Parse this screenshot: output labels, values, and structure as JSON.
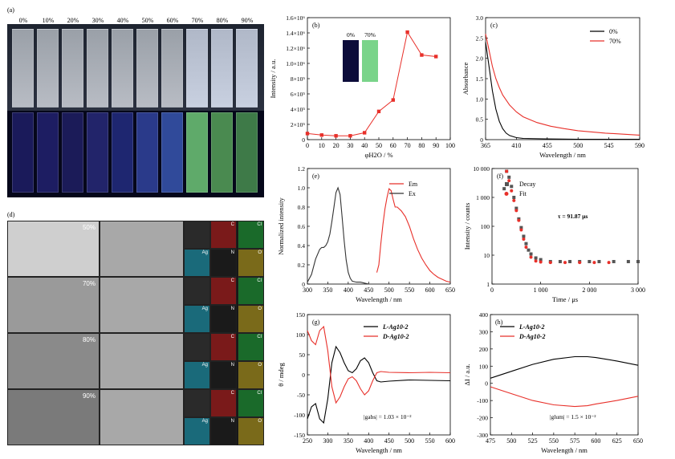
{
  "panel_a": {
    "tag": "(a)",
    "labels": [
      "0%",
      "10%",
      "20%",
      "30%",
      "40%",
      "50%",
      "60%",
      "70%",
      "80%",
      "90%"
    ]
  },
  "panel_d": {
    "tag": "(d)",
    "rows": [
      "50%",
      "70%",
      "80%",
      "90%"
    ],
    "map_labels": [
      "C",
      "Cl",
      "Ag",
      "N",
      "O"
    ]
  },
  "chart_data": [
    {
      "id": "b",
      "tag": "(b)",
      "type": "line",
      "xlabel": "φH2O / %",
      "ylabel": "Intensity / a.u.",
      "xlim": [
        0,
        100
      ],
      "ylim": [
        0,
        1600000
      ],
      "xticks": [
        "0",
        "10",
        "20",
        "30",
        "40",
        "50",
        "60",
        "70",
        "80",
        "90",
        "100"
      ],
      "yticks": [
        "0",
        "2×10⁵",
        "4×10⁵",
        "6×10⁵",
        "8×10⁵",
        "1.0×10⁶",
        "1.2×10⁶",
        "1.4×10⁶",
        "1.6×10⁶"
      ],
      "inset_labels": [
        "0%",
        "70%"
      ],
      "x": [
        0,
        10,
        20,
        30,
        40,
        50,
        60,
        70,
        80,
        90
      ],
      "y": [
        80000,
        60000,
        50000,
        50000,
        90000,
        370000,
        520000,
        1410000,
        1110000,
        1090000
      ],
      "color": "#e8302a"
    },
    {
      "id": "c",
      "tag": "(c)",
      "type": "line",
      "xlabel": "Wavelength / nm",
      "ylabel": "Absorbance",
      "xlim": [
        365,
        590
      ],
      "ylim": [
        0,
        3.0
      ],
      "xticks": [
        "365",
        "410",
        "455",
        "500",
        "545",
        "590"
      ],
      "yticks": [
        "0",
        "0.5",
        "1.0",
        "1.5",
        "2.0",
        "2.5",
        "3.0"
      ],
      "series": [
        {
          "name": "0%",
          "color": "#000000",
          "x": [
            365,
            370,
            375,
            380,
            385,
            390,
            395,
            400,
            410,
            420,
            450,
            500,
            590
          ],
          "y": [
            2.4,
            1.8,
            1.2,
            0.75,
            0.45,
            0.27,
            0.16,
            0.1,
            0.05,
            0.03,
            0.02,
            0.01,
            0.01
          ]
        },
        {
          "name": "70%",
          "color": "#e8302a",
          "x": [
            365,
            370,
            375,
            380,
            385,
            390,
            400,
            410,
            420,
            440,
            460,
            480,
            500,
            540,
            590
          ],
          "y": [
            2.6,
            2.2,
            1.8,
            1.5,
            1.28,
            1.1,
            0.85,
            0.68,
            0.56,
            0.42,
            0.33,
            0.27,
            0.22,
            0.16,
            0.11
          ]
        }
      ]
    },
    {
      "id": "e",
      "tag": "(e)",
      "type": "line",
      "xlabel": "Wavelength / nm",
      "ylabel": "Normalized intensity",
      "xlim": [
        300,
        650
      ],
      "ylim": [
        0,
        1.2
      ],
      "xticks": [
        "300",
        "350",
        "400",
        "450",
        "500",
        "550",
        "600",
        "650"
      ],
      "yticks": [
        "0",
        "0.2",
        "0.4",
        "0.6",
        "0.8",
        "1.0",
        "1.2"
      ],
      "series": [
        {
          "name": "Em",
          "color": "#e8302a",
          "x": [
            470,
            475,
            480,
            485,
            490,
            495,
            500,
            505,
            510,
            515,
            520,
            530,
            540,
            550,
            560,
            570,
            580,
            590,
            600,
            610,
            620,
            630,
            640,
            650
          ],
          "y": [
            0.12,
            0.2,
            0.42,
            0.62,
            0.78,
            0.9,
            0.99,
            0.97,
            0.88,
            0.8,
            0.8,
            0.76,
            0.7,
            0.6,
            0.47,
            0.36,
            0.27,
            0.2,
            0.14,
            0.1,
            0.07,
            0.05,
            0.03,
            0.02
          ]
        },
        {
          "name": "Ex",
          "color": "#333333",
          "x": [
            300,
            310,
            320,
            330,
            335,
            340,
            345,
            350,
            355,
            360,
            365,
            370,
            375,
            380,
            385,
            390,
            395,
            400,
            405,
            410,
            420,
            430,
            440,
            450
          ],
          "y": [
            0.02,
            0.1,
            0.26,
            0.36,
            0.38,
            0.38,
            0.4,
            0.44,
            0.52,
            0.65,
            0.8,
            0.95,
            1.0,
            0.93,
            0.7,
            0.45,
            0.25,
            0.12,
            0.06,
            0.03,
            0.02,
            0.02,
            0.01,
            0.0
          ]
        }
      ]
    },
    {
      "id": "f",
      "tag": "(f)",
      "type": "scatter",
      "xlabel": "Time / μs",
      "ylabel": "Intensity / counts",
      "xlim": [
        0,
        3000
      ],
      "ylim": [
        1,
        10000
      ],
      "yscale": "log",
      "xticks": [
        "0",
        "1 000",
        "2 000",
        "3 000"
      ],
      "yticks": [
        "1",
        "10",
        "100",
        "1 000",
        "10 000"
      ],
      "annotation": "τ = 91.87 μs",
      "series": [
        {
          "name": "Decay",
          "color": "#555555",
          "x": [
            250,
            300,
            350,
            400,
            450,
            500,
            550,
            600,
            650,
            700,
            750,
            800,
            900,
            1000,
            1200,
            1400,
            1600,
            1800,
            2000,
            2200,
            2500,
            2800,
            3000
          ],
          "y": [
            2000,
            8000,
            5000,
            2400,
            1000,
            420,
            180,
            90,
            45,
            25,
            15,
            11,
            8,
            7,
            6,
            6,
            6,
            6,
            6,
            6,
            6,
            6,
            6
          ]
        },
        {
          "name": "Fit",
          "color": "#e8302a",
          "x": [
            300,
            350,
            400,
            450,
            500,
            550,
            600,
            650,
            700,
            800,
            900,
            1000,
            1200,
            1500,
            1800,
            2100,
            2400
          ],
          "y": [
            8000,
            3800,
            1700,
            780,
            350,
            160,
            75,
            36,
            19,
            8.5,
            6.3,
            5.8,
            5.6,
            5.6,
            5.6,
            5.6,
            5.6
          ]
        }
      ]
    },
    {
      "id": "g",
      "tag": "(g)",
      "type": "line",
      "xlabel": "Wavelength / nm",
      "ylabel": "θ / mdeg",
      "xlim": [
        250,
        600
      ],
      "ylim": [
        -150,
        150
      ],
      "xticks": [
        "250",
        "300",
        "350",
        "400",
        "450",
        "500",
        "550",
        "600"
      ],
      "yticks": [
        "-150",
        "-100",
        "-50",
        "0",
        "50",
        "100",
        "150"
      ],
      "annotation": "|gabs| = 1.03 × 10⁻²",
      "series": [
        {
          "name": "L-Ag10-2",
          "color": "#000000",
          "x": [
            250,
            260,
            270,
            280,
            290,
            300,
            310,
            320,
            330,
            340,
            350,
            360,
            370,
            380,
            390,
            400,
            410,
            420,
            430,
            450,
            500,
            550,
            600
          ],
          "y": [
            -110,
            -80,
            -72,
            -110,
            -120,
            -60,
            30,
            70,
            55,
            30,
            10,
            5,
            15,
            35,
            42,
            30,
            5,
            -15,
            -18,
            -16,
            -13,
            -14,
            -15
          ]
        },
        {
          "name": "D-Ag10-2",
          "color": "#e8302a",
          "x": [
            250,
            260,
            270,
            280,
            290,
            300,
            310,
            320,
            330,
            340,
            350,
            360,
            370,
            380,
            390,
            400,
            410,
            420,
            430,
            450,
            500,
            550,
            600
          ],
          "y": [
            110,
            85,
            75,
            110,
            120,
            60,
            -30,
            -70,
            -55,
            -30,
            -10,
            -5,
            -15,
            -35,
            -50,
            -40,
            -15,
            5,
            8,
            6,
            5,
            6,
            5
          ]
        }
      ]
    },
    {
      "id": "h",
      "tag": "(h)",
      "type": "line",
      "xlabel": "Wavelength / nm",
      "ylabel": "ΔI / a.u.",
      "xlim": [
        475,
        650
      ],
      "ylim": [
        -300,
        400
      ],
      "xticks": [
        "475",
        "500",
        "525",
        "550",
        "575",
        "600",
        "625",
        "650"
      ],
      "yticks": [
        "-300",
        "-200",
        "-100",
        "0",
        "100",
        "200",
        "300",
        "400"
      ],
      "annotation": "|glum| = 1.5 × 10⁻²",
      "series": [
        {
          "name": "L-Ag10-2",
          "color": "#000000",
          "x": [
            475,
            500,
            525,
            550,
            575,
            590,
            600,
            625,
            650
          ],
          "y": [
            30,
            70,
            110,
            140,
            155,
            155,
            150,
            130,
            105
          ]
        },
        {
          "name": "D-Ag10-2",
          "color": "#e8302a",
          "x": [
            475,
            500,
            525,
            550,
            575,
            590,
            600,
            625,
            650
          ],
          "y": [
            -20,
            -60,
            -100,
            -125,
            -135,
            -130,
            -120,
            -100,
            -75
          ]
        }
      ]
    }
  ]
}
